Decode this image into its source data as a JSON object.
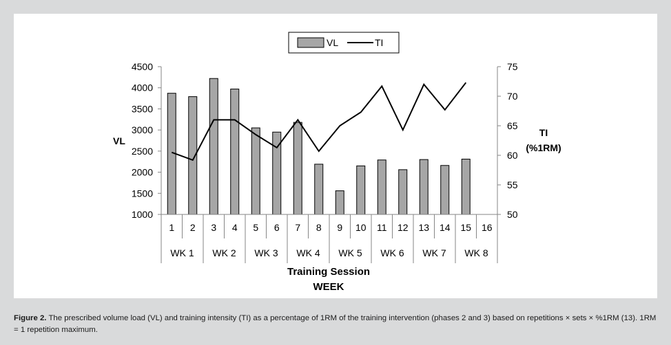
{
  "chart_data": {
    "type": "bar",
    "legend": {
      "placement": "top-center",
      "bar_label": "VL",
      "line_label": "TI"
    },
    "sessions": [
      "1",
      "2",
      "3",
      "4",
      "5",
      "6",
      "7",
      "8",
      "9",
      "10",
      "11",
      "12",
      "13",
      "14",
      "15",
      "16"
    ],
    "weeks": [
      "WK 1",
      "WK 2",
      "WK 3",
      "WK 4",
      "WK 5",
      "WK 6",
      "WK 7",
      "WK 8"
    ],
    "series": [
      {
        "name": "VL",
        "type": "bar",
        "axis": "left",
        "values": [
          3870,
          3790,
          4220,
          3970,
          3050,
          2950,
          3180,
          2190,
          1560,
          2150,
          2290,
          2060,
          2300,
          2160,
          2310,
          null
        ]
      },
      {
        "name": "TI",
        "type": "line",
        "axis": "right",
        "values": [
          60.5,
          59.2,
          66,
          66,
          63.5,
          61.3,
          66,
          60.7,
          65,
          67.3,
          71.7,
          64.3,
          72,
          67.7,
          72.3,
          null
        ]
      }
    ],
    "ylabel_left": "VL",
    "ylabel_right": [
      "TI",
      "(%1RM)"
    ],
    "xlabel": [
      "Training Session",
      "WEEK"
    ],
    "ylim_left": [
      1000,
      4500
    ],
    "yticks_left": [
      "1000",
      "1500",
      "2000",
      "2500",
      "3000",
      "3500",
      "4000",
      "4500"
    ],
    "ylim_right": [
      50,
      75
    ],
    "yticks_right": [
      "50",
      "55",
      "60",
      "65",
      "70",
      "75"
    ],
    "grid": false,
    "colors": {
      "bar_fill": "#a6a6a6",
      "bar_stroke": "#000000",
      "line": "#000000"
    }
  },
  "caption": {
    "label": "Figure 2.",
    "text": "The prescribed volume load (VL) and training intensity (TI) as a percentage of 1RM of the training intervention (phases 2 and 3) based on repetitions × sets × %1RM (13). 1RM = 1 repetition maximum."
  }
}
